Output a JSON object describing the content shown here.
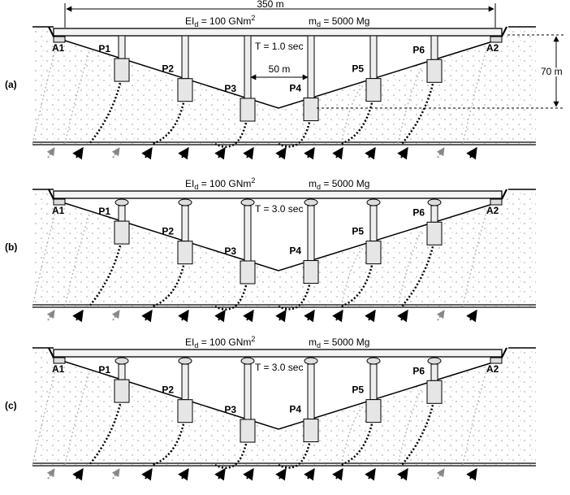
{
  "dimensions": {
    "total_span": "350 m",
    "valley_depth": "70 m",
    "pier_spacing": "50 m"
  },
  "panels": [
    {
      "label": "(a)",
      "deck_stiffness": {
        "main": "EI",
        "sub": "d",
        "rest": " = 100 GNm",
        "sup": "2"
      },
      "deck_mass": {
        "main": "m",
        "sub": "d",
        "rest": " = 5000 Mg"
      },
      "period": "T = 1.0 sec",
      "piers": [
        "P1",
        "P2",
        "P3",
        "P4",
        "P5",
        "P6"
      ],
      "abutments": [
        "A1",
        "A2"
      ]
    },
    {
      "label": "(b)",
      "deck_stiffness": {
        "main": "EI",
        "sub": "d",
        "rest": " = 100 GNm",
        "sup": "2"
      },
      "deck_mass": {
        "main": "m",
        "sub": "d",
        "rest": " = 5000 Mg"
      },
      "period": "T = 3.0 sec",
      "piers": [
        "P1",
        "P2",
        "P3",
        "P4",
        "P5",
        "P6"
      ],
      "abutments": [
        "A1",
        "A2"
      ]
    },
    {
      "label": "(c)",
      "deck_stiffness": {
        "main": "EI",
        "sub": "d",
        "rest": " = 100 GNm",
        "sup": "2"
      },
      "deck_mass": {
        "main": "m",
        "sub": "d",
        "rest": " = 5000 Mg"
      },
      "period": "T = 3.0 sec",
      "piers": [
        "P1",
        "P2",
        "P3",
        "P4",
        "P5",
        "P6"
      ],
      "abutments": [
        "A1",
        "A2"
      ]
    }
  ]
}
